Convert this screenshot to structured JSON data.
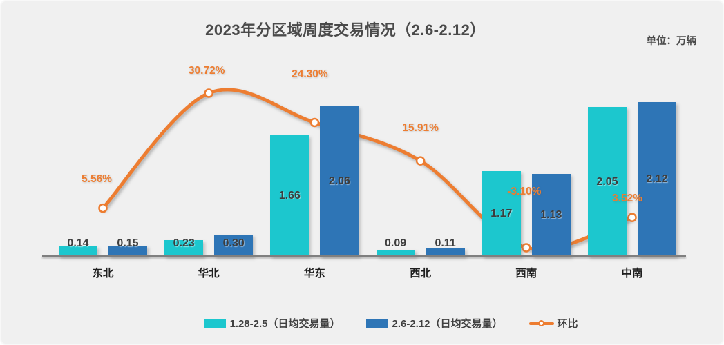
{
  "title": "2023年分区域周度交易情况（2.6-2.12）",
  "unit_label": "单位：万辆",
  "colors": {
    "bar_prev": "#1cc7ce",
    "bar_curr": "#2e75b6",
    "line": "#ed7d31",
    "marker_fill": "#ffffff",
    "axis": "#7f7f7f",
    "text": "#404040",
    "background": "#f0f0f0"
  },
  "chart_data": {
    "type": "bar",
    "subtype": "combo-bar-line",
    "title": "2023年分区域周度交易情况（2.6-2.12）",
    "unit": "万辆",
    "categories": [
      "东北",
      "华北",
      "华东",
      "西北",
      "西南",
      "中南"
    ],
    "series": [
      {
        "name": "1.28-2.5（日均交易量）",
        "type": "bar",
        "color": "#1cc7ce",
        "values": [
          0.14,
          0.23,
          1.66,
          0.09,
          1.17,
          2.05
        ],
        "labels": [
          "0.14",
          "0.23",
          "1.66",
          "0.09",
          "1.17",
          "2.05"
        ]
      },
      {
        "name": "2.6-2.12（日均交易量）",
        "type": "bar",
        "color": "#2e75b6",
        "values": [
          0.15,
          0.3,
          2.06,
          0.11,
          1.13,
          2.12
        ],
        "labels": [
          "0.15",
          "0.30",
          "2.06",
          "0.11",
          "1.13",
          "2.12"
        ]
      },
      {
        "name": "环比",
        "type": "line",
        "axis": "secondary",
        "color": "#ed7d31",
        "values": [
          5.56,
          30.72,
          24.3,
          15.91,
          -3.1,
          3.52
        ],
        "labels": [
          "5.56%",
          "30.72%",
          "24.30%",
          "15.91%",
          "-3.10%",
          "3.52%"
        ]
      }
    ],
    "ylim_primary": [
      0,
      2.8
    ],
    "grid": false,
    "legend_position": "bottom"
  },
  "legend": {
    "items": [
      {
        "label": "1.28-2.5（日均交易量）",
        "shape": "rect",
        "color": "#1cc7ce"
      },
      {
        "label": "2.6-2.12（日均交易量）",
        "shape": "rect",
        "color": "#2e75b6"
      },
      {
        "label": "环比",
        "shape": "line-marker",
        "color": "#ed7d31"
      }
    ]
  }
}
